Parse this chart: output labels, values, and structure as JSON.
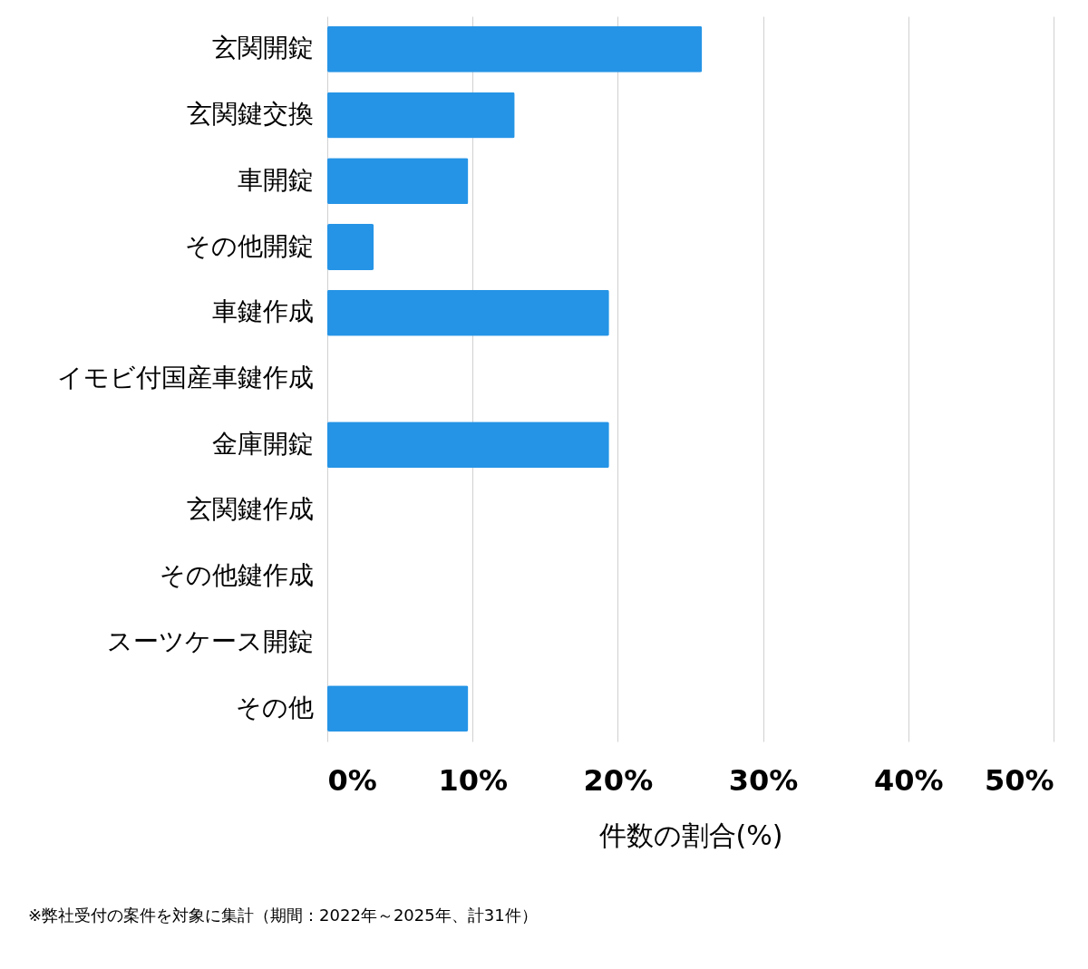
{
  "chart_data": {
    "type": "bar",
    "orientation": "horizontal",
    "categories": [
      "玄関開錠",
      "玄関鍵交換",
      "車開錠",
      "その他開錠",
      "車鍵作成",
      "イモビ付国産車鍵作成",
      "金庫開錠",
      "玄関鍵作成",
      "その他鍵作成",
      "スーツケース開錠",
      "その他"
    ],
    "values": [
      25.8,
      12.9,
      9.7,
      3.2,
      19.4,
      0,
      19.4,
      0,
      0,
      0,
      9.7
    ],
    "color": "#2594e6",
    "xlim": [
      0,
      50
    ],
    "xticks": [
      {
        "value": 0,
        "label": "0%"
      },
      {
        "value": 10,
        "label": "10%"
      },
      {
        "value": 20,
        "label": "20%"
      },
      {
        "value": 30,
        "label": "30%"
      },
      {
        "value": 40,
        "label": "40%"
      },
      {
        "value": 50,
        "label": "50%"
      }
    ],
    "xlabel": "件数の割合(%)",
    "grid": "x",
    "annotations": [
      "※弊社受付の案件を対象に集計（期間：2022年～2025年、計31件）"
    ]
  }
}
